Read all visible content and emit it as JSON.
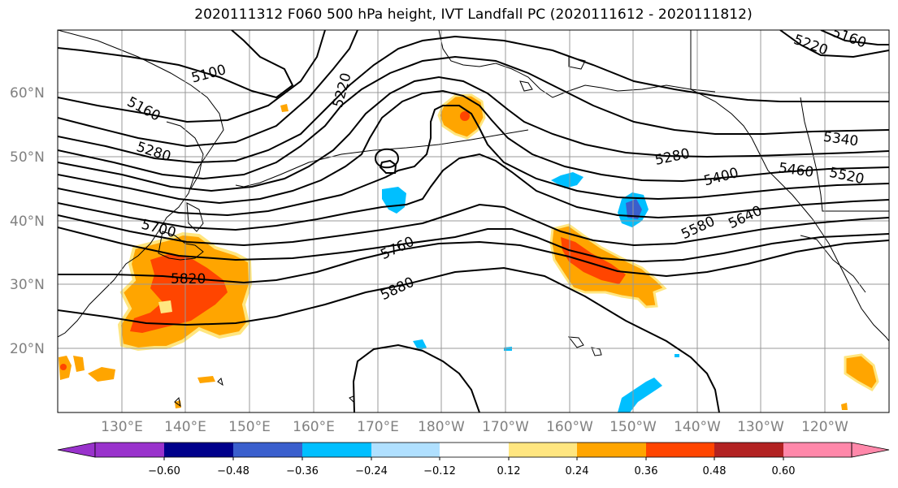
{
  "title": "2020111312 F060 500 hPa height, IVT Landfall PC (2020111612 - 2020111812)",
  "lat_labels": [
    "60°N",
    "50°N",
    "40°N",
    "30°N",
    "20°N"
  ],
  "lon_labels": [
    "130°E",
    "140°E",
    "150°E",
    "160°E",
    "170°E",
    "180°W",
    "170°W",
    "160°W",
    "150°W",
    "140°W",
    "130°W",
    "120°W"
  ],
  "contour_labels": [
    "5100",
    "5160",
    "5220",
    "5280",
    "5700",
    "5820",
    "5760",
    "5880",
    "5280",
    "5400",
    "5460",
    "5520",
    "5580",
    "5640",
    "5340",
    "5220",
    "5160"
  ],
  "colorbar": {
    "ticks": [
      "−0.60",
      "−0.48",
      "−0.36",
      "−0.24",
      "−0.12",
      "0.12",
      "0.24",
      "0.36",
      "0.48",
      "0.60"
    ],
    "colors": [
      "#9932cc",
      "#00008b",
      "#3a5fcd",
      "#00bfff",
      "#b0e0ff",
      "#ffffff",
      "#ffe680",
      "#ffa500",
      "#ff4500",
      "#b22222",
      "#ff88aa"
    ]
  },
  "anomaly_colors": {
    "positive_low": "#ffa500",
    "positive_mid": "#ff4500",
    "positive_edge": "#ffe680",
    "negative_low": "#00bfff",
    "negative_mid": "#3a5fcd"
  }
}
